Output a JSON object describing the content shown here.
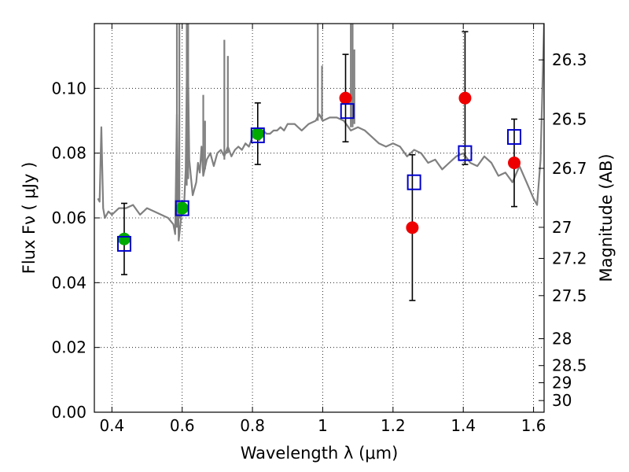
{
  "chart_data": {
    "type": "scatter",
    "title": "",
    "xlabel": "Wavelength  λ (μm)",
    "ylabel": "Flux  Fν  ( μJy )",
    "ylabel_right": "Magnitude (AB)",
    "xlim": [
      0.35,
      1.63
    ],
    "ylim": [
      0.0,
      0.12
    ],
    "grid": true,
    "x_ticks": [
      0.4,
      0.6,
      0.8,
      1.0,
      1.2,
      1.4,
      1.6
    ],
    "x_tick_labels": [
      "0.4",
      "0.6",
      "0.8",
      "1",
      "1.2",
      "1.4",
      "1.6"
    ],
    "y_ticks": [
      0.0,
      0.02,
      0.04,
      0.06,
      0.08,
      0.1
    ],
    "y_tick_labels": [
      "0.00",
      "0.02",
      "0.04",
      "0.06",
      "0.08",
      "0.10"
    ],
    "right_ticks": [
      {
        "label": "26.3",
        "flux": 0.1088
      },
      {
        "label": "26.5",
        "flux": 0.0905
      },
      {
        "label": "26.7",
        "flux": 0.0753
      },
      {
        "label": "27",
        "flux": 0.0571
      },
      {
        "label": "27.2",
        "flux": 0.0475
      },
      {
        "label": "27.5",
        "flux": 0.036
      },
      {
        "label": "28",
        "flux": 0.0227
      },
      {
        "label": "28.5",
        "flux": 0.0144
      },
      {
        "label": "29",
        "flux": 0.0091
      },
      {
        "label": "30",
        "flux": 0.0036
      }
    ],
    "series": [
      {
        "kind": "line",
        "color": "#808080",
        "x": [
          0.36,
          0.365,
          0.37,
          0.375,
          0.38,
          0.39,
          0.4,
          0.42,
          0.44,
          0.46,
          0.48,
          0.5,
          0.52,
          0.54,
          0.56,
          0.575,
          0.58,
          0.585,
          0.59,
          0.595,
          0.6,
          0.605,
          0.61,
          0.615,
          0.62,
          0.63,
          0.64,
          0.645,
          0.65,
          0.655,
          0.66,
          0.67,
          0.68,
          0.69,
          0.7,
          0.71,
          0.72,
          0.73,
          0.74,
          0.75,
          0.76,
          0.77,
          0.78,
          0.79,
          0.8,
          0.81,
          0.82,
          0.83,
          0.84,
          0.85,
          0.86,
          0.87,
          0.88,
          0.89,
          0.9,
          0.92,
          0.94,
          0.96,
          0.98,
          0.99,
          1.0,
          1.02,
          1.04,
          1.06,
          1.08,
          1.1,
          1.12,
          1.14,
          1.16,
          1.18,
          1.2,
          1.22,
          1.24,
          1.26,
          1.28,
          1.3,
          1.32,
          1.34,
          1.36,
          1.38,
          1.4,
          1.42,
          1.44,
          1.46,
          1.48,
          1.5,
          1.52,
          1.54,
          1.56,
          1.58,
          1.6,
          1.61,
          1.62,
          1.63
        ],
        "y": [
          0.066,
          0.065,
          0.088,
          0.063,
          0.06,
          0.062,
          0.061,
          0.063,
          0.063,
          0.064,
          0.061,
          0.063,
          0.062,
          0.061,
          0.06,
          0.058,
          0.055,
          0.092,
          0.053,
          0.058,
          0.065,
          0.063,
          0.075,
          0.12,
          0.078,
          0.067,
          0.071,
          0.077,
          0.074,
          0.082,
          0.073,
          0.078,
          0.08,
          0.076,
          0.08,
          0.081,
          0.079,
          0.082,
          0.079,
          0.081,
          0.082,
          0.081,
          0.083,
          0.082,
          0.085,
          0.086,
          0.084,
          0.087,
          0.086,
          0.086,
          0.087,
          0.087,
          0.088,
          0.087,
          0.089,
          0.089,
          0.087,
          0.089,
          0.09,
          0.092,
          0.09,
          0.091,
          0.091,
          0.09,
          0.087,
          0.088,
          0.087,
          0.085,
          0.083,
          0.082,
          0.083,
          0.082,
          0.079,
          0.081,
          0.08,
          0.077,
          0.078,
          0.075,
          0.077,
          0.079,
          0.08,
          0.077,
          0.076,
          0.079,
          0.077,
          0.073,
          0.074,
          0.071,
          0.076,
          0.071,
          0.066,
          0.064,
          0.078,
          0.12
        ]
      },
      {
        "kind": "open-square",
        "color": "#0000cc",
        "x": [
          0.435,
          0.6,
          0.815,
          1.07,
          1.26,
          1.405,
          1.545
        ],
        "y": [
          0.052,
          0.063,
          0.0855,
          0.093,
          0.071,
          0.08,
          0.085
        ]
      },
      {
        "kind": "point",
        "color": "#00aa00",
        "x": [
          0.435,
          0.6,
          0.815
        ],
        "y": [
          0.0535,
          0.063,
          0.086
        ]
      },
      {
        "kind": "point",
        "color": "#ee0000",
        "x": [
          1.065,
          1.255,
          1.405,
          1.545
        ],
        "y": [
          0.097,
          0.057,
          0.097,
          0.077
        ]
      },
      {
        "kind": "errorbar",
        "color": "#000000",
        "x": [
          0.435,
          0.815,
          1.065,
          1.255,
          1.405,
          1.545
        ],
        "y": [
          0.0535,
          0.086,
          0.097,
          0.057,
          0.097,
          0.077
        ],
        "yerr": [
          0.011,
          0.0095,
          0.0135,
          0.0225,
          0.0205,
          0.0135
        ]
      }
    ],
    "spikes": [
      {
        "x": 0.585,
        "y0": 0.057,
        "y1": 0.12
      },
      {
        "x": 0.592,
        "y0": 0.06,
        "y1": 0.12
      },
      {
        "x": 0.613,
        "y0": 0.07,
        "y1": 0.12
      },
      {
        "x": 0.617,
        "y0": 0.072,
        "y1": 0.12
      },
      {
        "x": 0.66,
        "y0": 0.075,
        "y1": 0.098
      },
      {
        "x": 0.665,
        "y0": 0.075,
        "y1": 0.09
      },
      {
        "x": 0.72,
        "y0": 0.078,
        "y1": 0.115
      },
      {
        "x": 0.73,
        "y0": 0.08,
        "y1": 0.11
      },
      {
        "x": 0.986,
        "y0": 0.09,
        "y1": 0.12
      },
      {
        "x": 0.998,
        "y0": 0.09,
        "y1": 0.107
      },
      {
        "x": 1.08,
        "y0": 0.088,
        "y1": 0.12
      },
      {
        "x": 1.085,
        "y0": 0.088,
        "y1": 0.12
      },
      {
        "x": 1.09,
        "y0": 0.089,
        "y1": 0.112
      }
    ]
  }
}
